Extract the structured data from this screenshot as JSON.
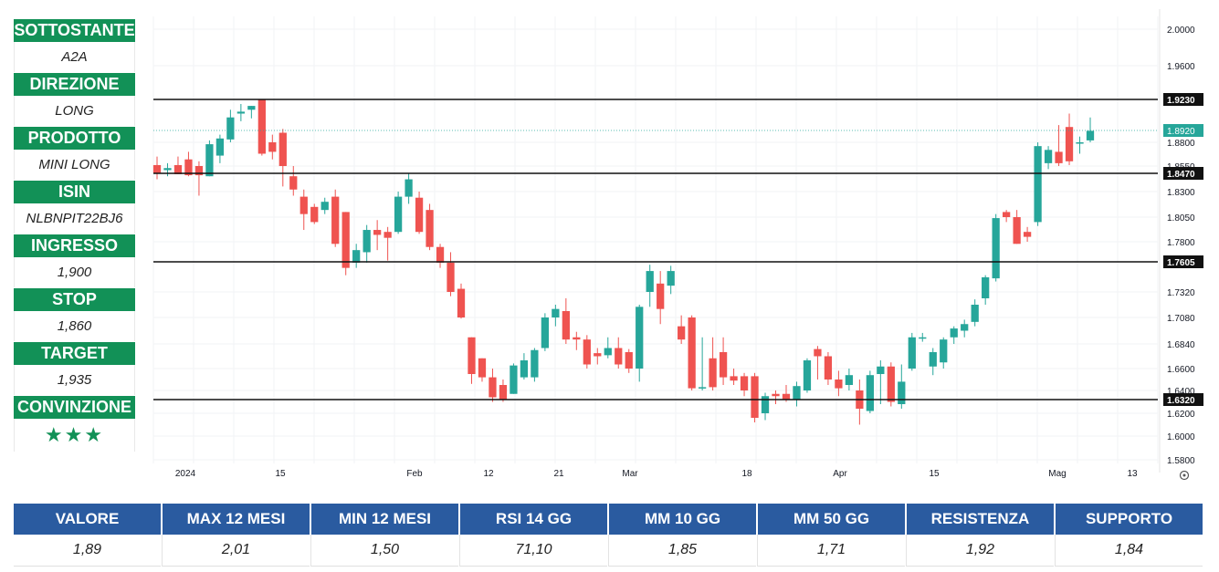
{
  "sidebar": [
    {
      "label": "SOTTOSTANTE",
      "value": "A2A"
    },
    {
      "label": "DIREZIONE",
      "value": "LONG"
    },
    {
      "label": "PRODOTTO",
      "value": "MINI LONG"
    },
    {
      "label": "ISIN",
      "value": "NLBNPIT22BJ6"
    },
    {
      "label": "INGRESSO",
      "value": "1,900"
    },
    {
      "label": "STOP",
      "value": "1,860"
    },
    {
      "label": "TARGET",
      "value": "1,935"
    },
    {
      "label": "CONVINZIONE",
      "value": "★★★"
    }
  ],
  "bottom_table": {
    "headers": [
      "VALORE",
      "MAX 12 MESI",
      "MIN 12 MESI",
      "RSI 14 GG",
      "MM 10 GG",
      "MM 50 GG",
      "RESISTENZA",
      "SUPPORTO"
    ],
    "values": [
      "1,89",
      "2,01",
      "1,50",
      "71,10",
      "1,85",
      "1,71",
      "1,92",
      "1,84"
    ]
  },
  "colors": {
    "sidebar_green": "#129157",
    "table_blue": "#2a5ba0",
    "up": "#26a69a",
    "down": "#ef5350"
  },
  "chart_data": {
    "type": "candlestick",
    "y_ticks": [
      "2.0000",
      "1.9600",
      "1.8800",
      "1.8550",
      "1.8300",
      "1.8050",
      "1.7800",
      "1.7320",
      "1.7080",
      "1.6840",
      "1.6600",
      "1.6400",
      "1.6200",
      "1.6000",
      "1.5800"
    ],
    "x_ticks": [
      "2024",
      "15",
      "Feb",
      "12",
      "21",
      "Mar",
      "18",
      "Apr",
      "15",
      "Mag",
      "13"
    ],
    "levels": [
      {
        "label": "1.9230",
        "value": 1.923
      },
      {
        "label": "1.8470",
        "value": 1.847
      },
      {
        "label": "1.7605",
        "value": 1.7605
      },
      {
        "label": "1.6320",
        "value": 1.632
      }
    ],
    "last_price": {
      "label": "1.8920",
      "value": 1.892
    },
    "candles": [
      {
        "o": 1.856,
        "h": 1.865,
        "l": 1.842,
        "c": 1.848
      },
      {
        "o": 1.851,
        "h": 1.858,
        "l": 1.845,
        "c": 1.853
      },
      {
        "o": 1.856,
        "h": 1.865,
        "l": 1.847,
        "c": 1.847
      },
      {
        "o": 1.862,
        "h": 1.87,
        "l": 1.845,
        "c": 1.846
      },
      {
        "o": 1.855,
        "h": 1.86,
        "l": 1.826,
        "c": 1.846
      },
      {
        "o": 1.845,
        "h": 1.882,
        "l": 1.845,
        "c": 1.878
      },
      {
        "o": 1.866,
        "h": 1.888,
        "l": 1.858,
        "c": 1.884
      },
      {
        "o": 1.883,
        "h": 1.914,
        "l": 1.88,
        "c": 1.906
      },
      {
        "o": 1.91,
        "h": 1.92,
        "l": 1.902,
        "c": 1.912
      },
      {
        "o": 1.914,
        "h": 1.918,
        "l": 1.905,
        "c": 1.918
      },
      {
        "o": 1.925,
        "h": 1.925,
        "l": 1.866,
        "c": 1.868
      },
      {
        "o": 1.88,
        "h": 1.888,
        "l": 1.862,
        "c": 1.87
      },
      {
        "o": 1.89,
        "h": 1.894,
        "l": 1.835,
        "c": 1.855
      },
      {
        "o": 1.845,
        "h": 1.855,
        "l": 1.826,
        "c": 1.832
      },
      {
        "o": 1.825,
        "h": 1.832,
        "l": 1.792,
        "c": 1.808
      },
      {
        "o": 1.815,
        "h": 1.818,
        "l": 1.798,
        "c": 1.8
      },
      {
        "o": 1.812,
        "h": 1.824,
        "l": 1.808,
        "c": 1.82
      },
      {
        "o": 1.825,
        "h": 1.832,
        "l": 1.775,
        "c": 1.778
      },
      {
        "o": 1.81,
        "h": 1.81,
        "l": 1.748,
        "c": 1.755
      },
      {
        "o": 1.76,
        "h": 1.778,
        "l": 1.755,
        "c": 1.772
      },
      {
        "o": 1.77,
        "h": 1.797,
        "l": 1.76,
        "c": 1.792
      },
      {
        "o": 1.792,
        "h": 1.802,
        "l": 1.772,
        "c": 1.787
      },
      {
        "o": 1.79,
        "h": 1.795,
        "l": 1.762,
        "c": 1.784
      },
      {
        "o": 1.79,
        "h": 1.83,
        "l": 1.788,
        "c": 1.825
      },
      {
        "o": 1.825,
        "h": 1.848,
        "l": 1.818,
        "c": 1.842
      },
      {
        "o": 1.824,
        "h": 1.83,
        "l": 1.788,
        "c": 1.79
      },
      {
        "o": 1.812,
        "h": 1.818,
        "l": 1.772,
        "c": 1.775
      },
      {
        "o": 1.775,
        "h": 1.778,
        "l": 1.755,
        "c": 1.76
      },
      {
        "o": 1.76,
        "h": 1.77,
        "l": 1.728,
        "c": 1.732
      },
      {
        "o": 1.735,
        "h": 1.74,
        "l": 1.707,
        "c": 1.708
      },
      {
        "o": 1.69,
        "h": 1.69,
        "l": 1.646,
        "c": 1.655
      },
      {
        "o": 1.67,
        "h": 1.67,
        "l": 1.648,
        "c": 1.652
      },
      {
        "o": 1.652,
        "h": 1.66,
        "l": 1.63,
        "c": 1.634
      },
      {
        "o": 1.645,
        "h": 1.65,
        "l": 1.63,
        "c": 1.632
      },
      {
        "o": 1.637,
        "h": 1.665,
        "l": 1.637,
        "c": 1.663
      },
      {
        "o": 1.652,
        "h": 1.675,
        "l": 1.65,
        "c": 1.668
      },
      {
        "o": 1.652,
        "h": 1.68,
        "l": 1.648,
        "c": 1.678
      },
      {
        "o": 1.68,
        "h": 1.712,
        "l": 1.677,
        "c": 1.708
      },
      {
        "o": 1.708,
        "h": 1.72,
        "l": 1.7,
        "c": 1.716
      },
      {
        "o": 1.714,
        "h": 1.726,
        "l": 1.684,
        "c": 1.688
      },
      {
        "o": 1.69,
        "h": 1.695,
        "l": 1.678,
        "c": 1.688
      },
      {
        "o": 1.688,
        "h": 1.692,
        "l": 1.66,
        "c": 1.664
      },
      {
        "o": 1.675,
        "h": 1.68,
        "l": 1.664,
        "c": 1.672
      },
      {
        "o": 1.673,
        "h": 1.69,
        "l": 1.67,
        "c": 1.68
      },
      {
        "o": 1.68,
        "h": 1.69,
        "l": 1.66,
        "c": 1.664
      },
      {
        "o": 1.676,
        "h": 1.679,
        "l": 1.656,
        "c": 1.66
      },
      {
        "o": 1.66,
        "h": 1.72,
        "l": 1.648,
        "c": 1.718
      },
      {
        "o": 1.732,
        "h": 1.758,
        "l": 1.718,
        "c": 1.752
      },
      {
        "o": 1.74,
        "h": 1.752,
        "l": 1.702,
        "c": 1.716
      },
      {
        "o": 1.738,
        "h": 1.757,
        "l": 1.73,
        "c": 1.752
      },
      {
        "o": 1.7,
        "h": 1.71,
        "l": 1.684,
        "c": 1.688
      },
      {
        "o": 1.708,
        "h": 1.71,
        "l": 1.64,
        "c": 1.642
      },
      {
        "o": 1.642,
        "h": 1.69,
        "l": 1.64,
        "c": 1.643
      },
      {
        "o": 1.67,
        "h": 1.69,
        "l": 1.64,
        "c": 1.643
      },
      {
        "o": 1.676,
        "h": 1.69,
        "l": 1.645,
        "c": 1.652
      },
      {
        "o": 1.653,
        "h": 1.66,
        "l": 1.645,
        "c": 1.649
      },
      {
        "o": 1.653,
        "h": 1.656,
        "l": 1.635,
        "c": 1.64
      },
      {
        "o": 1.653,
        "h": 1.656,
        "l": 1.612,
        "c": 1.616
      },
      {
        "o": 1.62,
        "h": 1.638,
        "l": 1.614,
        "c": 1.635
      },
      {
        "o": 1.637,
        "h": 1.64,
        "l": 1.628,
        "c": 1.635
      },
      {
        "o": 1.637,
        "h": 1.645,
        "l": 1.63,
        "c": 1.632
      },
      {
        "o": 1.632,
        "h": 1.648,
        "l": 1.626,
        "c": 1.644
      },
      {
        "o": 1.64,
        "h": 1.67,
        "l": 1.638,
        "c": 1.668
      },
      {
        "o": 1.679,
        "h": 1.682,
        "l": 1.65,
        "c": 1.672
      },
      {
        "o": 1.672,
        "h": 1.676,
        "l": 1.645,
        "c": 1.65
      },
      {
        "o": 1.65,
        "h": 1.658,
        "l": 1.635,
        "c": 1.642
      },
      {
        "o": 1.645,
        "h": 1.66,
        "l": 1.64,
        "c": 1.654
      },
      {
        "o": 1.64,
        "h": 1.65,
        "l": 1.61,
        "c": 1.624
      },
      {
        "o": 1.622,
        "h": 1.658,
        "l": 1.62,
        "c": 1.654
      },
      {
        "o": 1.655,
        "h": 1.668,
        "l": 1.628,
        "c": 1.662
      },
      {
        "o": 1.662,
        "h": 1.666,
        "l": 1.626,
        "c": 1.63
      },
      {
        "o": 1.628,
        "h": 1.664,
        "l": 1.624,
        "c": 1.648
      },
      {
        "o": 1.66,
        "h": 1.694,
        "l": 1.658,
        "c": 1.69
      },
      {
        "o": 1.69,
        "h": 1.694,
        "l": 1.686,
        "c": 1.69
      },
      {
        "o": 1.662,
        "h": 1.68,
        "l": 1.654,
        "c": 1.676
      },
      {
        "o": 1.666,
        "h": 1.69,
        "l": 1.66,
        "c": 1.688
      },
      {
        "o": 1.69,
        "h": 1.7,
        "l": 1.684,
        "c": 1.698
      },
      {
        "o": 1.696,
        "h": 1.706,
        "l": 1.69,
        "c": 1.702
      },
      {
        "o": 1.704,
        "h": 1.725,
        "l": 1.7,
        "c": 1.72
      },
      {
        "o": 1.726,
        "h": 1.748,
        "l": 1.72,
        "c": 1.746
      },
      {
        "o": 1.745,
        "h": 1.808,
        "l": 1.742,
        "c": 1.804
      },
      {
        "o": 1.81,
        "h": 1.812,
        "l": 1.8,
        "c": 1.805
      },
      {
        "o": 1.805,
        "h": 1.812,
        "l": 1.778,
        "c": 1.778
      },
      {
        "o": 1.79,
        "h": 1.795,
        "l": 1.78,
        "c": 1.785
      },
      {
        "o": 1.8,
        "h": 1.88,
        "l": 1.796,
        "c": 1.876
      },
      {
        "o": 1.858,
        "h": 1.876,
        "l": 1.852,
        "c": 1.872
      },
      {
        "o": 1.87,
        "h": 1.898,
        "l": 1.855,
        "c": 1.858
      },
      {
        "o": 1.896,
        "h": 1.91,
        "l": 1.856,
        "c": 1.86
      },
      {
        "o": 1.88,
        "h": 1.886,
        "l": 1.868,
        "c": 1.88
      },
      {
        "o": 1.882,
        "h": 1.906,
        "l": 1.88,
        "c": 1.892
      }
    ]
  }
}
